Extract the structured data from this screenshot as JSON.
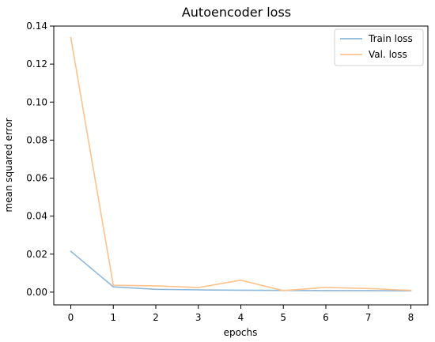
{
  "chart_data": {
    "type": "line",
    "title": "Autoencoder loss",
    "xlabel": "epochs",
    "ylabel": "mean squared error",
    "x": [
      0,
      1,
      2,
      3,
      4,
      5,
      6,
      7,
      8
    ],
    "xticks": [
      "0",
      "1",
      "2",
      "3",
      "4",
      "5",
      "6",
      "7",
      "8"
    ],
    "yticks": [
      "0.00",
      "0.02",
      "0.04",
      "0.06",
      "0.08",
      "0.10",
      "0.12",
      "0.14"
    ],
    "ytick_values": [
      0,
      0.02,
      0.04,
      0.06,
      0.08,
      0.1,
      0.12,
      0.14
    ],
    "xlim": [
      -0.4,
      8.4
    ],
    "ylim": [
      -0.0067,
      0.14
    ],
    "grid": false,
    "legend_position": "top-right",
    "series": [
      {
        "name": "Train loss",
        "color": "#8db8dc",
        "values": [
          0.0215,
          0.0028,
          0.0015,
          0.0012,
          0.001,
          0.0009,
          0.0008,
          0.0008,
          0.0007
        ]
      },
      {
        "name": "Val. loss",
        "color": "#ffc28c",
        "values": [
          0.134,
          0.0036,
          0.0033,
          0.0024,
          0.0063,
          0.0008,
          0.0025,
          0.0019,
          0.0009
        ]
      }
    ]
  }
}
